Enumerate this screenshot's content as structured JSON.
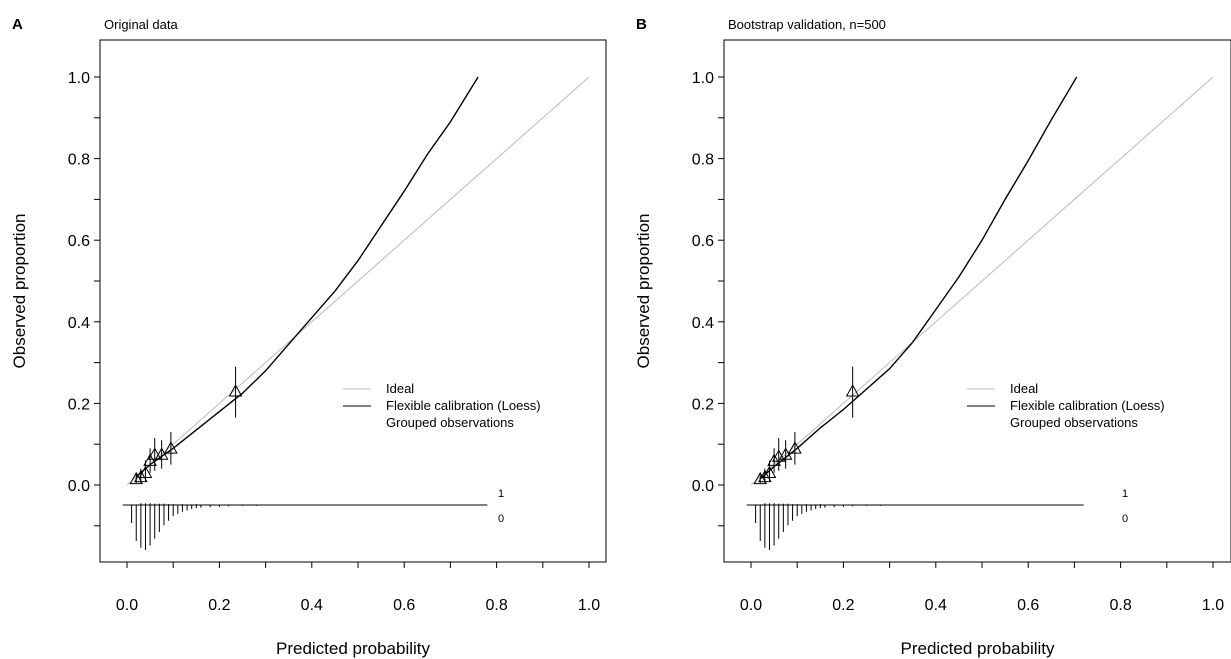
{
  "chart_data": [
    {
      "type": "line",
      "panel_letter": "A",
      "title": "Original data",
      "xlabel": "Predicted probability",
      "ylabel": "Observed proportion",
      "xlim": [
        -0.05,
        1.0
      ],
      "ylim": [
        -0.18,
        1.0
      ],
      "x_ticks": [
        "0.0",
        "0.2",
        "0.4",
        "0.6",
        "0.8",
        "1.0"
      ],
      "y_ticks": [
        "0.0",
        "0.2",
        "0.4",
        "0.6",
        "0.8",
        "1.0"
      ],
      "grid": false,
      "legend_placement": "right",
      "legend": [
        "Ideal",
        "Flexible calibration (Loess)",
        "Grouped observations"
      ],
      "series": [
        {
          "name": "Ideal",
          "color": "#bbbbbb",
          "x": [
            0.0,
            1.0
          ],
          "y": [
            0.0,
            1.0
          ]
        },
        {
          "name": "Flexible calibration (Loess)",
          "color": "#000000",
          "x": [
            0.02,
            0.05,
            0.1,
            0.15,
            0.2,
            0.25,
            0.3,
            0.35,
            0.4,
            0.45,
            0.5,
            0.55,
            0.6,
            0.65,
            0.7,
            0.76
          ],
          "y": [
            0.02,
            0.05,
            0.09,
            0.135,
            0.18,
            0.225,
            0.28,
            0.345,
            0.41,
            0.475,
            0.55,
            0.635,
            0.72,
            0.81,
            0.89,
            1.0
          ]
        },
        {
          "name": "Grouped observations",
          "marker": "triangle",
          "x": [
            0.02,
            0.03,
            0.04,
            0.05,
            0.06,
            0.075,
            0.095,
            0.235
          ],
          "y": [
            0.015,
            0.02,
            0.03,
            0.06,
            0.075,
            0.075,
            0.09,
            0.23
          ],
          "err_low": [
            0.005,
            0.005,
            0.01,
            0.03,
            0.035,
            0.04,
            0.05,
            0.165
          ],
          "err_high": [
            0.03,
            0.04,
            0.06,
            0.09,
            0.115,
            0.11,
            0.13,
            0.29
          ]
        }
      ],
      "spike_labels": [
        "1",
        "0"
      ],
      "spike_line_range": [
        0.0,
        0.78
      ],
      "spikes_event": [
        [
          0.03,
          0.004
        ],
        [
          0.04,
          0.004
        ],
        [
          0.05,
          0.004
        ],
        [
          0.06,
          0.003
        ],
        [
          0.07,
          0.003
        ],
        [
          0.08,
          0.003
        ],
        [
          0.09,
          0.002
        ],
        [
          0.1,
          0.002
        ],
        [
          0.12,
          0.002
        ],
        [
          0.15,
          0.002
        ],
        [
          0.2,
          0.001
        ],
        [
          0.25,
          0.001
        ]
      ],
      "spikes_nonevent": [
        [
          0.01,
          0.04
        ],
        [
          0.02,
          0.08
        ],
        [
          0.03,
          0.095
        ],
        [
          0.04,
          0.1
        ],
        [
          0.05,
          0.09
        ],
        [
          0.06,
          0.075
        ],
        [
          0.07,
          0.06
        ],
        [
          0.08,
          0.045
        ],
        [
          0.09,
          0.035
        ],
        [
          0.1,
          0.025
        ],
        [
          0.11,
          0.02
        ],
        [
          0.12,
          0.015
        ],
        [
          0.13,
          0.012
        ],
        [
          0.14,
          0.009
        ],
        [
          0.15,
          0.007
        ],
        [
          0.16,
          0.006
        ],
        [
          0.18,
          0.005
        ],
        [
          0.2,
          0.004
        ],
        [
          0.22,
          0.003
        ],
        [
          0.25,
          0.002
        ],
        [
          0.28,
          0.002
        ],
        [
          0.32,
          0.001
        ],
        [
          0.36,
          0.001
        ],
        [
          0.4,
          0.001
        ]
      ]
    },
    {
      "type": "line",
      "panel_letter": "B",
      "title": "Bootstrap validation, n=500",
      "xlabel": "Predicted probability",
      "ylabel": "Observed proportion",
      "xlim": [
        -0.05,
        1.0
      ],
      "ylim": [
        -0.18,
        1.0
      ],
      "x_ticks": [
        "0.0",
        "0.2",
        "0.4",
        "0.6",
        "0.8",
        "1.0"
      ],
      "y_ticks": [
        "0.0",
        "0.2",
        "0.4",
        "0.6",
        "0.8",
        "1.0"
      ],
      "grid": false,
      "legend_placement": "right",
      "legend": [
        "Ideal",
        "Flexible calibration (Loess)",
        "Grouped observations"
      ],
      "series": [
        {
          "name": "Ideal",
          "color": "#bbbbbb",
          "x": [
            0.0,
            1.0
          ],
          "y": [
            0.0,
            1.0
          ]
        },
        {
          "name": "Flexible calibration (Loess)",
          "color": "#000000",
          "x": [
            0.02,
            0.05,
            0.1,
            0.15,
            0.2,
            0.25,
            0.3,
            0.35,
            0.4,
            0.45,
            0.5,
            0.55,
            0.6,
            0.65,
            0.705
          ],
          "y": [
            0.015,
            0.045,
            0.09,
            0.14,
            0.185,
            0.235,
            0.285,
            0.35,
            0.43,
            0.51,
            0.6,
            0.7,
            0.795,
            0.895,
            1.0
          ]
        },
        {
          "name": "Grouped observations",
          "marker": "triangle",
          "x": [
            0.02,
            0.03,
            0.04,
            0.05,
            0.06,
            0.075,
            0.095,
            0.22
          ],
          "y": [
            0.015,
            0.02,
            0.03,
            0.06,
            0.07,
            0.075,
            0.09,
            0.23
          ],
          "err_low": [
            0.005,
            0.005,
            0.01,
            0.03,
            0.035,
            0.04,
            0.05,
            0.165
          ],
          "err_high": [
            0.03,
            0.04,
            0.06,
            0.09,
            0.115,
            0.11,
            0.13,
            0.29
          ]
        }
      ],
      "spike_labels": [
        "1",
        "0"
      ],
      "spike_line_range": [
        0.0,
        0.72
      ],
      "spikes_event": [
        [
          0.03,
          0.004
        ],
        [
          0.04,
          0.004
        ],
        [
          0.05,
          0.004
        ],
        [
          0.06,
          0.003
        ],
        [
          0.07,
          0.003
        ],
        [
          0.08,
          0.003
        ],
        [
          0.09,
          0.002
        ],
        [
          0.1,
          0.002
        ],
        [
          0.12,
          0.002
        ],
        [
          0.15,
          0.002
        ],
        [
          0.2,
          0.001
        ],
        [
          0.25,
          0.001
        ]
      ],
      "spikes_nonevent": [
        [
          0.01,
          0.04
        ],
        [
          0.02,
          0.08
        ],
        [
          0.03,
          0.095
        ],
        [
          0.04,
          0.1
        ],
        [
          0.05,
          0.09
        ],
        [
          0.06,
          0.075
        ],
        [
          0.07,
          0.06
        ],
        [
          0.08,
          0.045
        ],
        [
          0.09,
          0.035
        ],
        [
          0.1,
          0.025
        ],
        [
          0.11,
          0.02
        ],
        [
          0.12,
          0.015
        ],
        [
          0.13,
          0.012
        ],
        [
          0.14,
          0.009
        ],
        [
          0.15,
          0.007
        ],
        [
          0.16,
          0.006
        ],
        [
          0.18,
          0.005
        ],
        [
          0.2,
          0.004
        ],
        [
          0.22,
          0.003
        ],
        [
          0.25,
          0.002
        ],
        [
          0.28,
          0.002
        ],
        [
          0.32,
          0.001
        ],
        [
          0.36,
          0.001
        ],
        [
          0.4,
          0.001
        ]
      ]
    }
  ]
}
